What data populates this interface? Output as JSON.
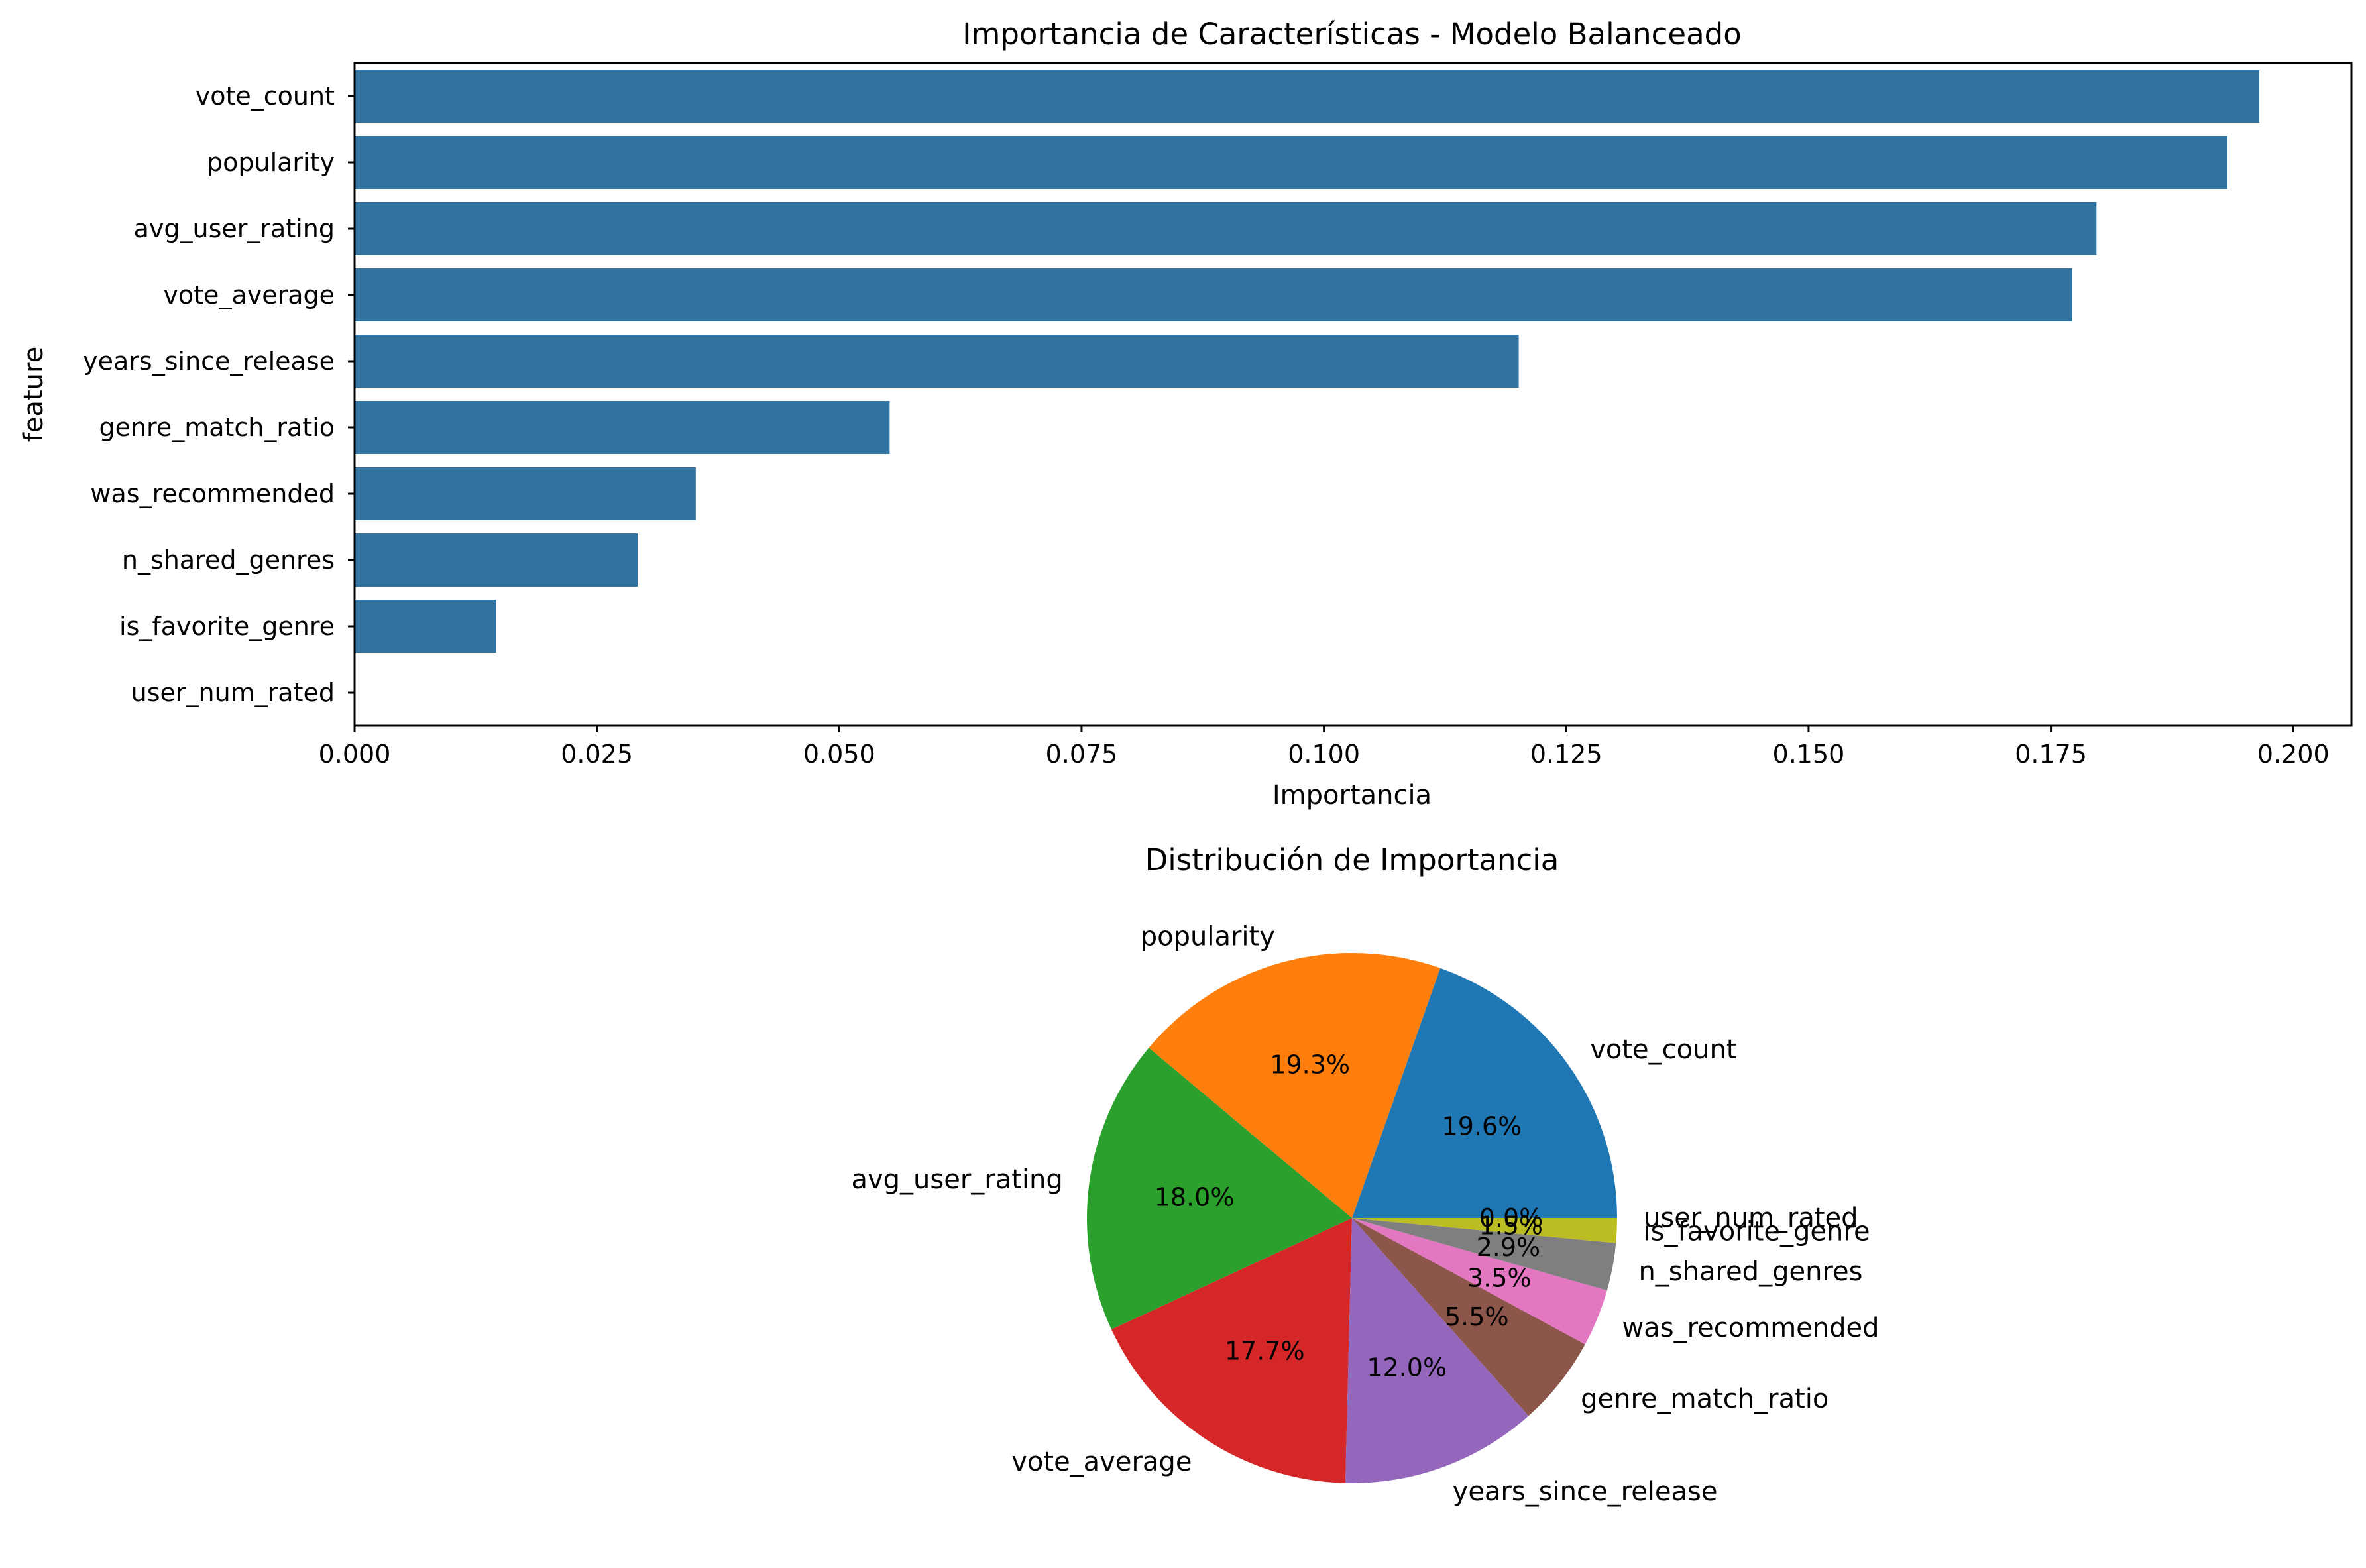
{
  "chart_data": [
    {
      "type": "bar",
      "orientation": "horizontal",
      "title": "Importancia de Características - Modelo Balanceado",
      "xlabel": "Importancia",
      "ylabel": "feature",
      "xlim": [
        0,
        0.206
      ],
      "xticks": [
        "0.000",
        "0.025",
        "0.050",
        "0.075",
        "0.100",
        "0.125",
        "0.150",
        "0.175",
        "0.200"
      ],
      "grid": false,
      "color": "#3274a1",
      "categories": [
        "vote_count",
        "popularity",
        "avg_user_rating",
        "vote_average",
        "years_since_release",
        "genre_match_ratio",
        "was_recommended",
        "n_shared_genres",
        "is_favorite_genre",
        "user_num_rated"
      ],
      "values": [
        0.1965,
        0.1932,
        0.1797,
        0.1772,
        0.1201,
        0.0552,
        0.0352,
        0.0292,
        0.0146,
        0.0
      ]
    },
    {
      "type": "pie",
      "title": "Distribución de Importancia",
      "labels": [
        "vote_count",
        "popularity",
        "avg_user_rating",
        "vote_average",
        "years_since_release",
        "genre_match_ratio",
        "was_recommended",
        "n_shared_genres",
        "is_favorite_genre",
        "user_num_rated"
      ],
      "values": [
        19.6,
        19.3,
        18.0,
        17.7,
        12.0,
        5.5,
        3.5,
        2.9,
        1.5,
        0.0
      ],
      "pct_labels": [
        "19.6%",
        "19.3%",
        "18.0%",
        "17.7%",
        "12.0%",
        "5.5%",
        "3.5%",
        "2.9%",
        "1.5%",
        "0.0%"
      ],
      "colors": [
        "#1f77b4",
        "#ff7f0e",
        "#2ca02c",
        "#d62728",
        "#9467bd",
        "#8c564b",
        "#e377c2",
        "#7f7f7f",
        "#bcbd22",
        "#17becf"
      ]
    }
  ]
}
